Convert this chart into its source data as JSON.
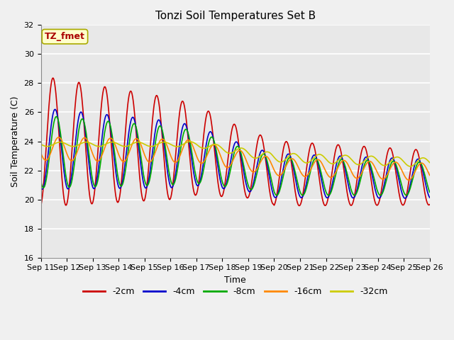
{
  "title": "Tonzi Soil Temperatures Set B",
  "xlabel": "Time",
  "ylabel": "Soil Temperature (C)",
  "ylim": [
    16,
    32
  ],
  "xtick_labels": [
    "Sep 11",
    "Sep 12",
    "Sep 13",
    "Sep 14",
    "Sep 15",
    "Sep 16",
    "Sep 17",
    "Sep 18",
    "Sep 19",
    "Sep 20",
    "Sep 21",
    "Sep 22",
    "Sep 23",
    "Sep 24",
    "Sep 25",
    "Sep 26"
  ],
  "ytick_values": [
    16,
    18,
    20,
    22,
    24,
    26,
    28,
    30,
    32
  ],
  "series_colors": [
    "#cc0000",
    "#0000cc",
    "#00aa00",
    "#ff8800",
    "#cccc00"
  ],
  "series_labels": [
    "-2cm",
    "-4cm",
    "-8cm",
    "-16cm",
    "-32cm"
  ],
  "annotation_text": "TZ_fmet",
  "annotation_color": "#aa0000",
  "annotation_bg": "#ffffcc",
  "plot_bg": "#e8e8e8",
  "line_width": 1.2,
  "title_fontsize": 11,
  "label_fontsize": 9,
  "tick_fontsize": 8,
  "legend_fontsize": 9
}
